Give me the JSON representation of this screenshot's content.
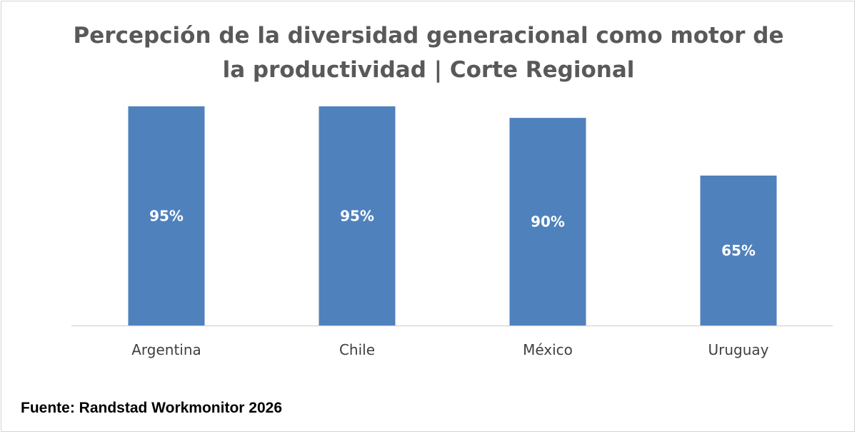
{
  "chart_data": {
    "type": "bar",
    "title_lines": [
      "Percepción de la diversidad generacional como motor de",
      "la productividad | Corte Regional"
    ],
    "categories": [
      "Argentina",
      "Chile",
      "México",
      "Uruguay"
    ],
    "values": [
      95,
      95,
      90,
      65
    ],
    "data_labels": [
      "95%",
      "95%",
      "90%",
      "65%"
    ],
    "bar_color": "#4f81bd",
    "ylim": [
      0,
      100
    ],
    "grid": false,
    "legend": "none"
  },
  "source": "Fuente: Randstad Workmonitor 2026"
}
